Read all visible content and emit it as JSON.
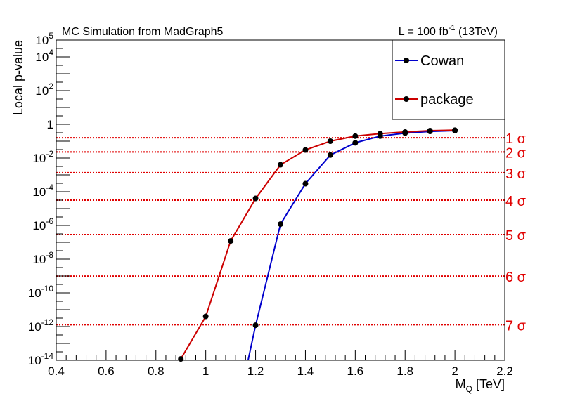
{
  "chart_data": {
    "type": "line",
    "header_left": "MC Simulation from MadGraph5",
    "luminosity": {
      "prefix": "L = 100 fb",
      "sup": "-1",
      "suffix": " (13TeV)"
    },
    "xlabel": {
      "main": "M",
      "sub": "Q",
      "suffix": " [TeV]"
    },
    "ylabel": "Local p-value",
    "xlim": [
      0.4,
      2.2
    ],
    "ylim": [
      1e-14,
      100000.0
    ],
    "yscale": "log",
    "grid": false,
    "legend_position": "top-right",
    "x_ticks": [
      "0.4",
      "0.6",
      "0.8",
      "1",
      "1.2",
      "1.4",
      "1.6",
      "1.8",
      "2",
      "2.2"
    ],
    "y_ticks": [
      {
        "base": "10",
        "exp": "5",
        "value": 100000.0
      },
      {
        "base": "10",
        "exp": "4",
        "value": 10000.0
      },
      {
        "base": "10",
        "exp": "2",
        "value": 100.0
      },
      {
        "base": "1",
        "exp": "",
        "value": 1
      },
      {
        "base": "10",
        "exp": "-2",
        "value": 0.01
      },
      {
        "base": "10",
        "exp": "-4",
        "value": 0.0001
      },
      {
        "base": "10",
        "exp": "-6",
        "value": 1e-06
      },
      {
        "base": "10",
        "exp": "-8",
        "value": 1e-08
      },
      {
        "base": "10",
        "exp": "-10",
        "value": 1e-10
      },
      {
        "base": "10",
        "exp": "-12",
        "value": 1e-12
      },
      {
        "base": "10",
        "exp": "-14",
        "value": 1e-14
      }
    ],
    "series": [
      {
        "name": "Cowan",
        "color": "#0000cc",
        "points": [
          [
            1.17,
            1e-14
          ],
          [
            1.2,
            1.2e-12
          ],
          [
            1.3,
            1.2e-06
          ],
          [
            1.4,
            0.0003
          ],
          [
            1.5,
            0.015
          ],
          [
            1.6,
            0.08
          ],
          [
            1.7,
            0.2
          ],
          [
            1.8,
            0.3
          ],
          [
            1.9,
            0.38
          ],
          [
            2.0,
            0.42
          ]
        ]
      },
      {
        "name": "package",
        "color": "#cc0000",
        "points": [
          [
            0.9,
            1.2e-14
          ],
          [
            1.0,
            4e-12
          ],
          [
            1.1,
            1.2e-07
          ],
          [
            1.2,
            4e-05
          ],
          [
            1.3,
            0.004
          ],
          [
            1.4,
            0.03
          ],
          [
            1.5,
            0.1
          ],
          [
            1.6,
            0.2
          ],
          [
            1.7,
            0.28
          ],
          [
            1.8,
            0.35
          ],
          [
            1.9,
            0.42
          ],
          [
            2.0,
            0.45
          ]
        ]
      }
    ],
    "sigma_lines": [
      {
        "label": "1 σ",
        "value": 0.1587
      },
      {
        "label": "2 σ",
        "value": 0.02275
      },
      {
        "label": "3 σ",
        "value": 0.00135
      },
      {
        "label": "4 σ",
        "value": 3.17e-05
      },
      {
        "label": "5 σ",
        "value": 2.87e-07
      },
      {
        "label": "6 σ",
        "value": 9.87e-10
      },
      {
        "label": "7 σ",
        "value": 1.28e-12
      }
    ],
    "colors": {
      "sigma": "#e00000",
      "marker": "#000000"
    }
  }
}
